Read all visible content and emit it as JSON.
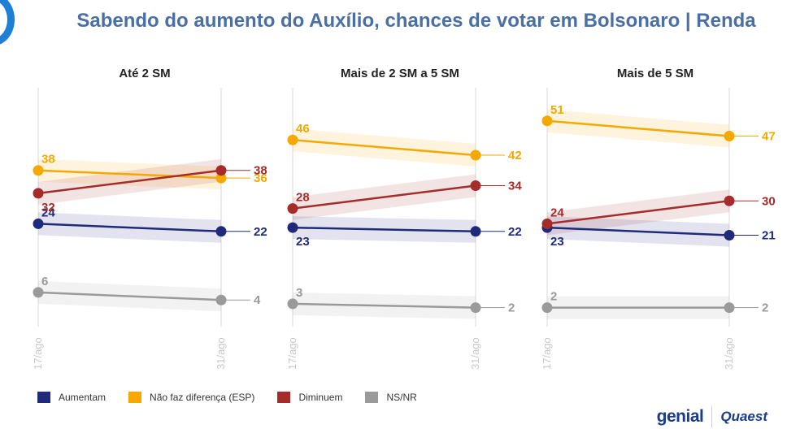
{
  "header": {
    "title": "Sabendo do aumento do Auxílio, chances de votar em Bolsonaro | Renda"
  },
  "legend": [
    {
      "label": "Aumentam",
      "color": "#1f2a7a"
    },
    {
      "label": "Não faz diferença (ESP)",
      "color": "#f5a800"
    },
    {
      "label": "Diminuem",
      "color": "#a62b2b"
    },
    {
      "label": "NS/NR",
      "color": "#9a9a9a"
    }
  ],
  "logos": {
    "genial": "genial",
    "quaest": "Quaest"
  },
  "chart_data": [
    {
      "type": "line",
      "title": "Até 2 SM",
      "x": [
        "17/ago",
        "31/ago"
      ],
      "series": [
        {
          "name": "Aumentam",
          "values": [
            24,
            22
          ],
          "color": "#1f2a7a"
        },
        {
          "name": "Não faz diferença (ESP)",
          "values": [
            38,
            36
          ],
          "color": "#f5a800"
        },
        {
          "name": "Diminuem",
          "values": [
            32,
            38
          ],
          "color": "#a62b2b"
        },
        {
          "name": "NS/NR",
          "values": [
            6,
            4
          ],
          "color": "#9a9a9a"
        }
      ]
    },
    {
      "type": "line",
      "title": "Mais de 2 SM a 5 SM",
      "x": [
        "17/ago",
        "31/ago"
      ],
      "series": [
        {
          "name": "Aumentam",
          "values": [
            23,
            22
          ],
          "color": "#1f2a7a"
        },
        {
          "name": "Não faz diferença (ESP)",
          "values": [
            46,
            42
          ],
          "color": "#f5a800"
        },
        {
          "name": "Diminuem",
          "values": [
            28,
            34
          ],
          "color": "#a62b2b"
        },
        {
          "name": "NS/NR",
          "values": [
            3,
            2
          ],
          "color": "#9a9a9a"
        }
      ]
    },
    {
      "type": "line",
      "title": "Mais de 5 SM",
      "x": [
        "17/ago",
        "31/ago"
      ],
      "series": [
        {
          "name": "Aumentam",
          "values": [
            23,
            21
          ],
          "color": "#1f2a7a"
        },
        {
          "name": "Não faz diferença (ESP)",
          "values": [
            51,
            47
          ],
          "color": "#f5a800"
        },
        {
          "name": "Diminuem",
          "values": [
            24,
            30
          ],
          "color": "#a62b2b"
        },
        {
          "name": "NS/NR",
          "values": [
            2,
            2
          ],
          "color": "#9a9a9a"
        }
      ]
    }
  ]
}
